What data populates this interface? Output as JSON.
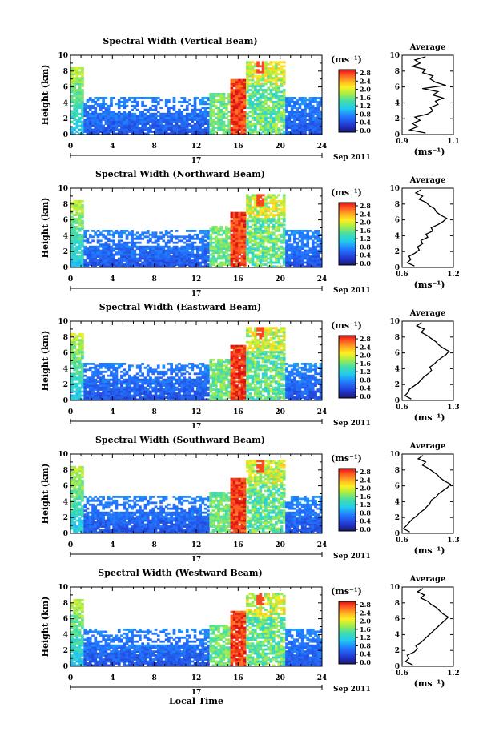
{
  "figure": {
    "x_axis_label": "Local Time",
    "date_suffix": "Sep 2011",
    "day_label": "17"
  },
  "chart_data": [
    {
      "type": "heatmap",
      "title": "Spectral Width (Vertical Beam)",
      "ylabel": "Height (km)",
      "xlabel": "Local Time",
      "xlim": [
        0,
        24
      ],
      "xticks": [
        0,
        4,
        8,
        12,
        16,
        20,
        24
      ],
      "ylim": [
        0,
        10
      ],
      "yticks": [
        0,
        2,
        4,
        6,
        8,
        10
      ],
      "colorbar": {
        "unit": "(ms⁻¹)",
        "range": [
          0,
          3.0
        ],
        "ticks": [
          "0.0",
          "0.4",
          "0.8",
          "1.2",
          "1.6",
          "2.0",
          "2.4",
          "2.8"
        ]
      },
      "average_profile": {
        "title": "Average",
        "xlabel": "(ms⁻¹)",
        "xlim": [
          0.9,
          1.1
        ],
        "xtick_labels": [
          "0.9",
          "1.1"
        ],
        "ylim": [
          0,
          10
        ],
        "yticks": [
          0,
          2,
          4,
          6,
          8,
          10
        ],
        "height_km": [
          0.2,
          0.6,
          1.0,
          1.4,
          1.8,
          2.2,
          2.6,
          3.0,
          3.4,
          3.8,
          4.2,
          4.6,
          5.0,
          5.4,
          5.8,
          6.2,
          6.6,
          7.0,
          7.4,
          7.8,
          8.2,
          8.6,
          9.0,
          9.4,
          9.8
        ],
        "value": [
          0.99,
          0.93,
          0.96,
          0.94,
          0.97,
          0.95,
          1.0,
          1.02,
          1.01,
          1.04,
          1.03,
          1.06,
          1.02,
          1.04,
          0.98,
          1.07,
          1.03,
          1.01,
          1.02,
          0.98,
          0.99,
          0.94,
          0.97,
          0.95,
          0.99
        ]
      }
    },
    {
      "type": "heatmap",
      "title": "Spectral Width (Northward Beam)",
      "ylabel": "Height (km)",
      "xlabel": "Local Time",
      "xlim": [
        0,
        24
      ],
      "xticks": [
        0,
        4,
        8,
        12,
        16,
        20,
        24
      ],
      "ylim": [
        0,
        10
      ],
      "yticks": [
        0,
        2,
        4,
        6,
        8,
        10
      ],
      "colorbar": {
        "unit": "(ms⁻¹)",
        "range": [
          0,
          3.0
        ],
        "ticks": [
          "0.0",
          "0.4",
          "0.8",
          "1.2",
          "1.6",
          "2.0",
          "2.4",
          "2.8"
        ]
      },
      "average_profile": {
        "title": "Average",
        "xlabel": "(ms⁻¹)",
        "xlim": [
          0.6,
          1.2
        ],
        "xtick_labels": [
          "0.6",
          "1.2"
        ],
        "ylim": [
          0,
          10
        ],
        "yticks": [
          0,
          2,
          4,
          6,
          8,
          10
        ],
        "height_km": [
          0.2,
          0.6,
          1.0,
          1.4,
          1.8,
          2.2,
          2.6,
          3.0,
          3.4,
          3.8,
          4.2,
          4.6,
          5.0,
          5.4,
          5.8,
          6.2,
          6.6,
          7.0,
          7.4,
          7.8,
          8.2,
          8.6,
          9.0,
          9.4,
          9.8
        ],
        "value": [
          0.74,
          0.66,
          0.7,
          0.68,
          0.75,
          0.8,
          0.78,
          0.84,
          0.82,
          0.9,
          0.88,
          0.96,
          0.94,
          1.02,
          1.08,
          1.12,
          1.05,
          1.0,
          0.98,
          0.92,
          0.88,
          0.8,
          0.84,
          0.76,
          0.82
        ]
      }
    },
    {
      "type": "heatmap",
      "title": "Spectral Width (Eastward Beam)",
      "ylabel": "Height (km)",
      "xlabel": "Local Time",
      "xlim": [
        0,
        24
      ],
      "xticks": [
        0,
        4,
        8,
        12,
        16,
        20,
        24
      ],
      "ylim": [
        0,
        10
      ],
      "yticks": [
        0,
        2,
        4,
        6,
        8,
        10
      ],
      "colorbar": {
        "unit": "(ms⁻¹)",
        "range": [
          0,
          3.0
        ],
        "ticks": [
          "0.0",
          "0.4",
          "0.8",
          "1.2",
          "1.6",
          "2.0",
          "2.4",
          "2.8"
        ]
      },
      "average_profile": {
        "title": "Average",
        "xlabel": "(ms⁻¹)",
        "xlim": [
          0.6,
          1.3
        ],
        "xtick_labels": [
          "0.6",
          "1.3"
        ],
        "ylim": [
          0,
          10
        ],
        "yticks": [
          0,
          2,
          4,
          6,
          8,
          10
        ],
        "height_km": [
          0.2,
          0.6,
          1.0,
          1.4,
          1.8,
          2.2,
          2.6,
          3.0,
          3.4,
          3.8,
          4.2,
          4.6,
          5.0,
          5.4,
          5.8,
          6.2,
          6.6,
          7.0,
          7.4,
          7.8,
          8.2,
          8.6,
          9.0,
          9.4,
          9.8
        ],
        "value": [
          0.72,
          0.64,
          0.68,
          0.7,
          0.76,
          0.82,
          0.86,
          0.9,
          0.96,
          1.0,
          0.98,
          1.04,
          1.08,
          1.14,
          1.2,
          1.24,
          1.16,
          1.1,
          1.06,
          1.0,
          0.94,
          0.86,
          0.9,
          0.8,
          0.86
        ]
      }
    },
    {
      "type": "heatmap",
      "title": "Spectral Width (Southward Beam)",
      "ylabel": "Height (km)",
      "xlabel": "Local Time",
      "xlim": [
        0,
        24
      ],
      "xticks": [
        0,
        4,
        8,
        12,
        16,
        20,
        24
      ],
      "ylim": [
        0,
        10
      ],
      "yticks": [
        0,
        2,
        4,
        6,
        8,
        10
      ],
      "colorbar": {
        "unit": "(ms⁻¹)",
        "range": [
          0,
          3.0
        ],
        "ticks": [
          "0.0",
          "0.4",
          "0.8",
          "1.2",
          "1.6",
          "2.0",
          "2.4",
          "2.8"
        ]
      },
      "average_profile": {
        "title": "Average",
        "xlabel": "(ms⁻¹)",
        "xlim": [
          0.6,
          1.3
        ],
        "xtick_labels": [
          "0.6",
          "1.3"
        ],
        "ylim": [
          0,
          10
        ],
        "yticks": [
          0,
          2,
          4,
          6,
          8,
          10
        ],
        "height_km": [
          0.2,
          0.6,
          1.0,
          1.4,
          1.8,
          2.2,
          2.6,
          3.0,
          3.4,
          3.8,
          4.2,
          4.6,
          5.0,
          5.4,
          5.8,
          6.2,
          6.6,
          7.0,
          7.4,
          7.8,
          8.2,
          8.6,
          9.0,
          9.4,
          9.8
        ],
        "value": [
          0.7,
          0.62,
          0.66,
          0.7,
          0.74,
          0.8,
          0.84,
          0.9,
          0.94,
          0.98,
          1.0,
          1.06,
          1.1,
          1.16,
          1.22,
          1.26,
          1.18,
          1.12,
          1.08,
          1.02,
          0.96,
          0.88,
          0.92,
          0.82,
          0.88
        ]
      }
    },
    {
      "type": "heatmap",
      "title": "Spectral Width (Westward Beam)",
      "ylabel": "Height (km)",
      "xlabel": "Local Time",
      "xlim": [
        0,
        24
      ],
      "xticks": [
        0,
        4,
        8,
        12,
        16,
        20,
        24
      ],
      "ylim": [
        0,
        10
      ],
      "yticks": [
        0,
        2,
        4,
        6,
        8,
        10
      ],
      "colorbar": {
        "unit": "(ms⁻¹)",
        "range": [
          0,
          3.0
        ],
        "ticks": [
          "0.0",
          "0.4",
          "0.8",
          "1.2",
          "1.6",
          "2.0",
          "2.4",
          "2.8"
        ]
      },
      "average_profile": {
        "title": "Average",
        "xlabel": "(ms⁻¹)",
        "xlim": [
          0.6,
          1.2
        ],
        "xtick_labels": [
          "0.6",
          "1.2"
        ],
        "ylim": [
          0,
          10
        ],
        "yticks": [
          0,
          2,
          4,
          6,
          8,
          10
        ],
        "height_km": [
          0.2,
          0.6,
          1.0,
          1.4,
          1.8,
          2.2,
          2.6,
          3.0,
          3.4,
          3.8,
          4.2,
          4.6,
          5.0,
          5.4,
          5.8,
          6.2,
          6.6,
          7.0,
          7.4,
          7.8,
          8.2,
          8.6,
          9.0,
          9.4,
          9.8
        ],
        "value": [
          0.72,
          0.64,
          0.68,
          0.66,
          0.74,
          0.78,
          0.76,
          0.82,
          0.86,
          0.9,
          0.94,
          0.98,
          1.02,
          1.06,
          1.1,
          1.14,
          1.08,
          1.04,
          1.0,
          0.94,
          0.9,
          0.82,
          0.86,
          0.78,
          0.84
        ]
      }
    }
  ]
}
